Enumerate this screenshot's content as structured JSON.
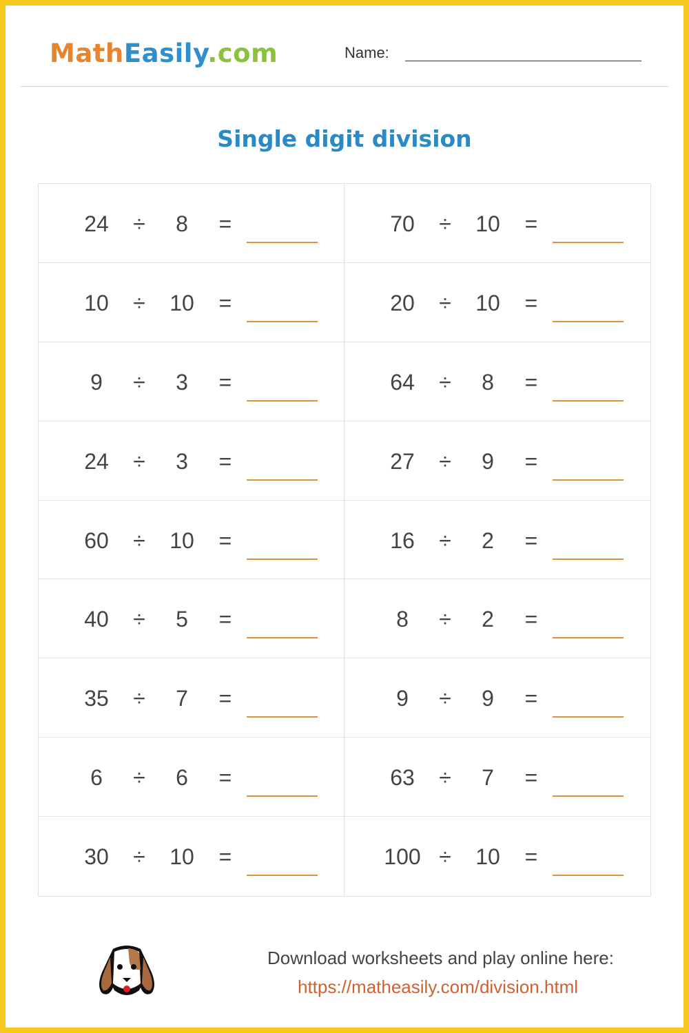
{
  "header": {
    "logo": {
      "math": "Math",
      "easily": "Easily",
      "com": ".com"
    },
    "name_label": "Name:"
  },
  "title": "Single digit division",
  "operator": "÷",
  "equals": "=",
  "problems": [
    {
      "a": "24",
      "b": "8"
    },
    {
      "a": "70",
      "b": "10"
    },
    {
      "a": "10",
      "b": "10"
    },
    {
      "a": "20",
      "b": "10"
    },
    {
      "a": "9",
      "b": "3"
    },
    {
      "a": "64",
      "b": "8"
    },
    {
      "a": "24",
      "b": "3"
    },
    {
      "a": "27",
      "b": "9"
    },
    {
      "a": "60",
      "b": "10"
    },
    {
      "a": "16",
      "b": "2"
    },
    {
      "a": "40",
      "b": "5"
    },
    {
      "a": "8",
      "b": "2"
    },
    {
      "a": "35",
      "b": "7"
    },
    {
      "a": "9",
      "b": "9"
    },
    {
      "a": "6",
      "b": "6"
    },
    {
      "a": "63",
      "b": "7"
    },
    {
      "a": "30",
      "b": "10"
    },
    {
      "a": "100",
      "b": "10"
    }
  ],
  "footer": {
    "text": "Download worksheets and play online here:",
    "link": "https://matheasily.com/division.html",
    "icon": "dog-icon"
  },
  "colors": {
    "border": "#f7c81e",
    "title": "#2a8ac6",
    "answer_line": "#e0913c",
    "link": "#d2602e"
  }
}
